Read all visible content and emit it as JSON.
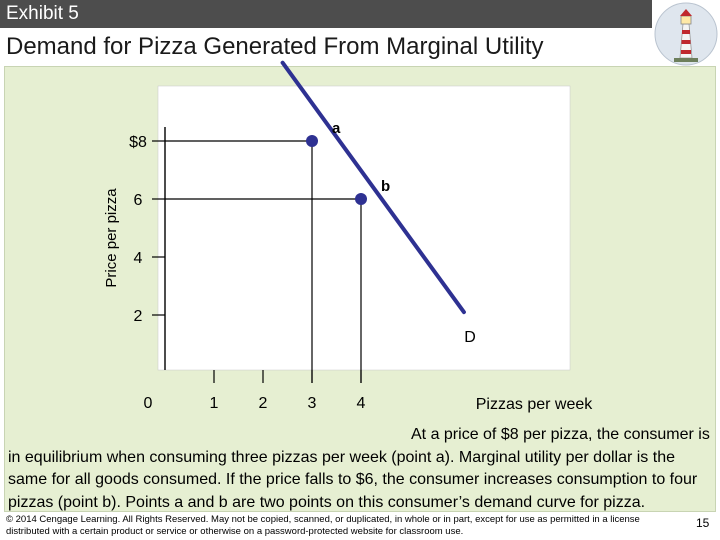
{
  "header": {
    "exhibit_label": "Exhibit 5",
    "title": "Demand for Pizza Generated From Marginal Utility"
  },
  "logo": {
    "icon": "lighthouse-icon"
  },
  "chart_data": {
    "type": "line",
    "title": "",
    "xlabel": "Pizzas per week",
    "ylabel": "Price per pizza",
    "x_ticks": [
      {
        "value": 0,
        "label": "0"
      },
      {
        "value": 1,
        "label": "1"
      },
      {
        "value": 2,
        "label": "2"
      },
      {
        "value": 3,
        "label": "3"
      },
      {
        "value": 4,
        "label": "4"
      }
    ],
    "y_ticks": [
      {
        "value": 2,
        "label": "2"
      },
      {
        "value": 4,
        "label": "4"
      },
      {
        "value": 6,
        "label": "6"
      },
      {
        "value": 8,
        "label": "$8"
      }
    ],
    "xlim": [
      0,
      8
    ],
    "ylim": [
      0,
      10
    ],
    "series": [
      {
        "name": "D",
        "x": [
          2.4,
          6.1
        ],
        "y": [
          10.7,
          2.1
        ]
      }
    ],
    "points": [
      {
        "label": "a",
        "x": 3,
        "y": 8
      },
      {
        "label": "b",
        "x": 4,
        "y": 6
      }
    ],
    "curve_label": "D",
    "grid": false,
    "colors": {
      "curve": "#2e3192",
      "dashed": "#000000",
      "plot_bg": "#ffffff",
      "panel_bg": "#e6efd2",
      "header_bg": "#4d4d4d"
    }
  },
  "description": "At a price of $8 per pizza, the consumer is in equilibrium when consuming three pizzas per week (point a). Marginal utility per dollar is the same for all goods consumed. If the price falls to $6, the consumer increases consumption to four pizzas (point b). Points a and b are two points on this consumer’s demand curve for pizza.",
  "footer": {
    "copyright": "© 2014 Cengage Learning. All Rights Reserved. May not be copied, scanned, or duplicated, in whole or in part, except for use as permitted in a license distributed with a certain product or service or otherwise on a password-protected website for classroom use.",
    "page_number": "15"
  }
}
